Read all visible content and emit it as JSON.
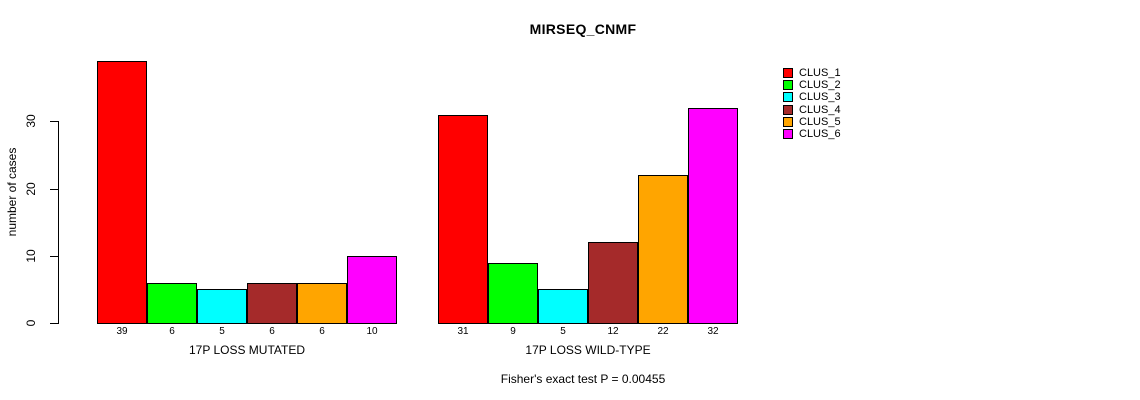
{
  "chart_data": {
    "type": "bar",
    "title": "MIRSEQ_CNMF",
    "ylabel": "number of cases",
    "xlabel": "",
    "ylim": [
      0,
      39
    ],
    "yticks": [
      0,
      10,
      20,
      30
    ],
    "grid": false,
    "legend_position": "right-inside",
    "categories": [
      "17P LOSS MUTATED",
      "17P LOSS WILD-TYPE"
    ],
    "series": [
      {
        "name": "CLUS_1",
        "color": "#ff0000",
        "values": [
          39,
          31
        ]
      },
      {
        "name": "CLUS_2",
        "color": "#00ff00",
        "values": [
          6,
          9
        ]
      },
      {
        "name": "CLUS_3",
        "color": "#00ffff",
        "values": [
          5,
          5
        ]
      },
      {
        "name": "CLUS_4",
        "color": "#a52a2a",
        "values": [
          6,
          12
        ]
      },
      {
        "name": "CLUS_5",
        "color": "#ffa500",
        "values": [
          6,
          22
        ]
      },
      {
        "name": "CLUS_6",
        "color": "#ff00ff",
        "values": [
          10,
          32
        ]
      }
    ],
    "bar_value_labels_shown": true,
    "annotation": "Fisher's exact test P = 0.00455"
  }
}
